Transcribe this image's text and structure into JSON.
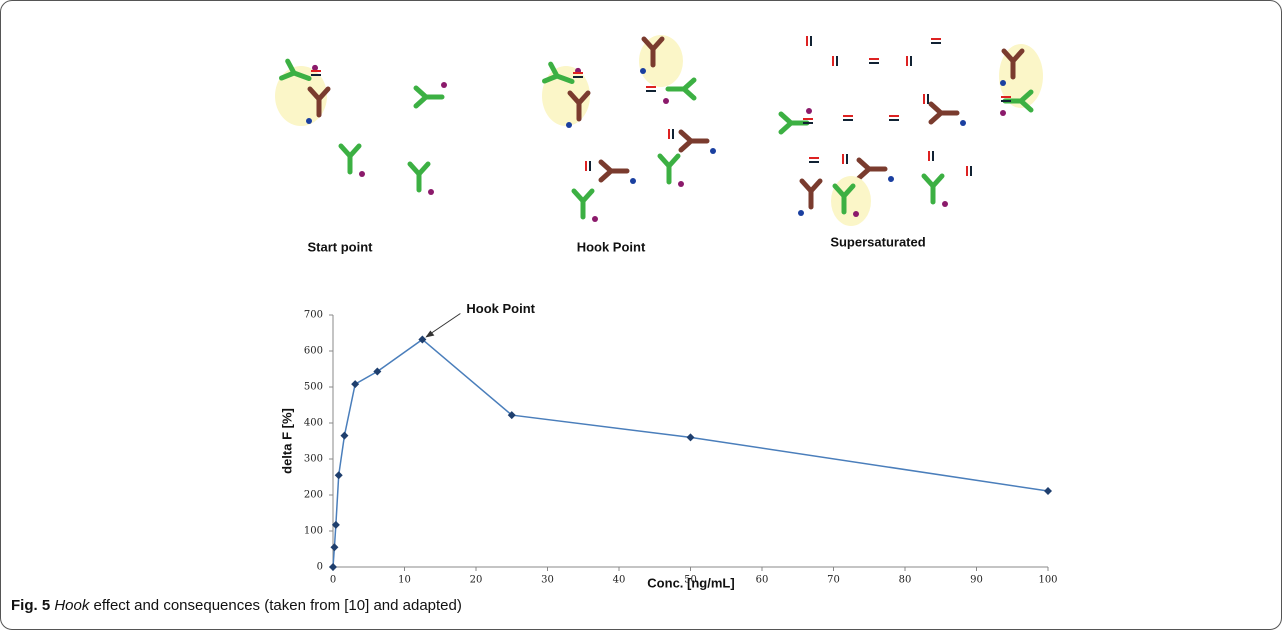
{
  "diagram": {
    "panels": [
      "Start point",
      "Hook Point",
      "Supersaturated"
    ]
  },
  "chart_data": {
    "type": "line",
    "annotation": "Hook Point",
    "x_label": "Conc. [ng/mL]",
    "y_label": "delta F [%]",
    "x": [
      0,
      0.2,
      0.4,
      0.8,
      1.6,
      3.1,
      6.2,
      12.5,
      25,
      50,
      100
    ],
    "series": [
      {
        "color": "#4a7ebb",
        "marker_color": "#1f3f6e",
        "values": [
          0,
          55,
          117,
          255,
          365,
          508,
          543,
          632,
          422,
          360,
          211
        ]
      }
    ],
    "xlim": [
      0,
      100
    ],
    "xticks": [
      0,
      10,
      20,
      30,
      40,
      50,
      60,
      70,
      80,
      90,
      100
    ],
    "ylim": [
      0,
      700
    ],
    "yticks": [
      0,
      100,
      200,
      300,
      400,
      500,
      600,
      700
    ],
    "grid": false
  },
  "caption": {
    "label": "Fig. 5",
    "term": "Hook",
    "text": " effect and consequences (taken from [10] and adapted)"
  }
}
